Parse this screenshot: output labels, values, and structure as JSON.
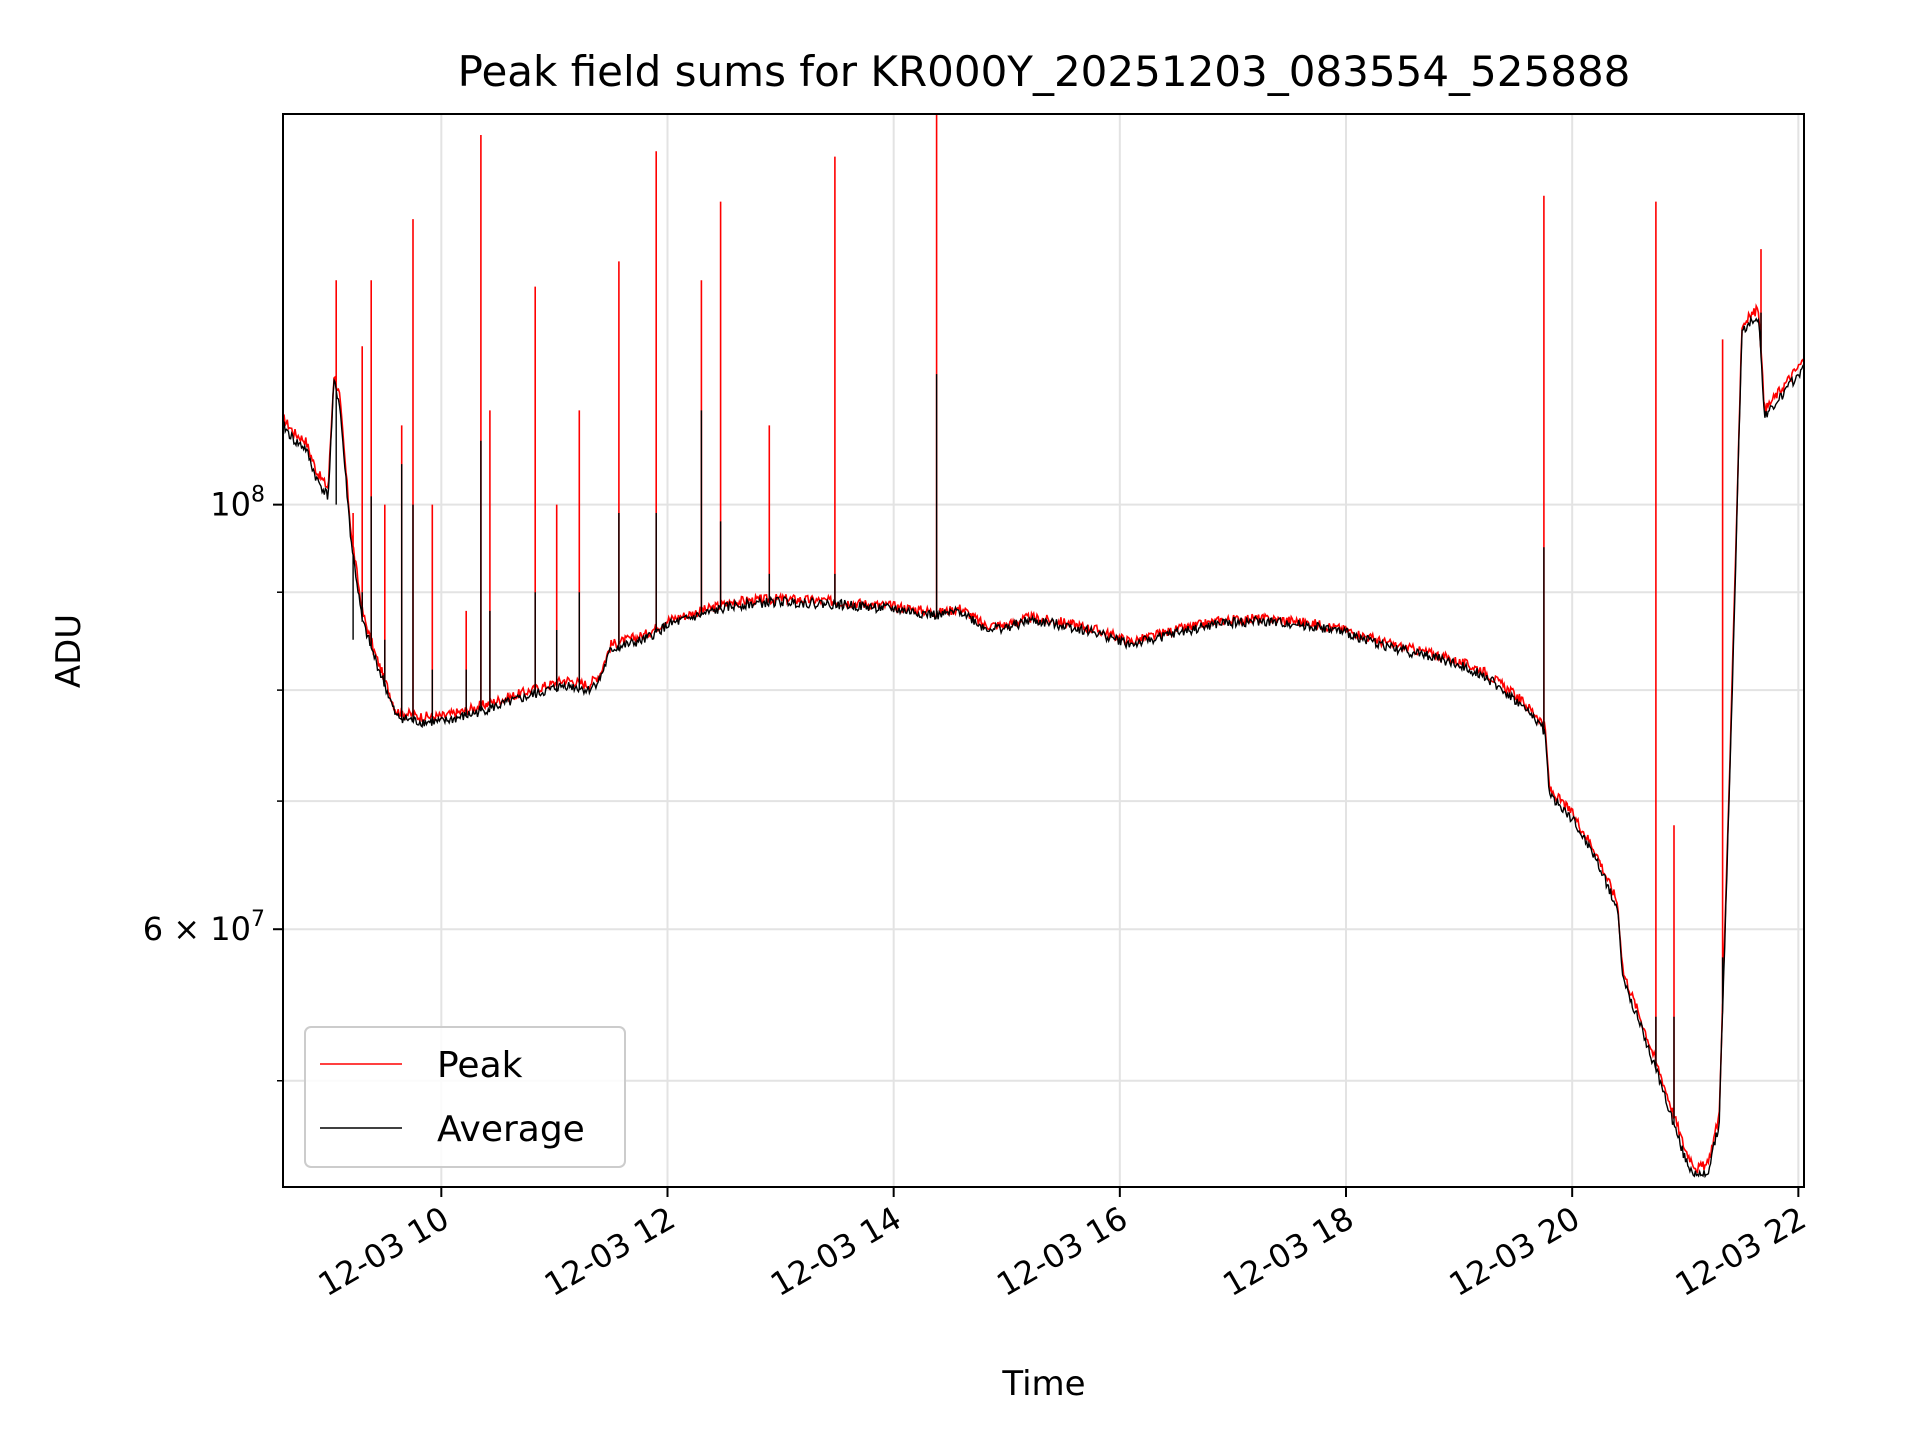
{
  "chart_data": {
    "type": "line",
    "title": "Peak field sums for KR000Y_20251203_083554_525888",
    "xlabel": "Time",
    "ylabel": "ADU",
    "yscale": "log",
    "grid": true,
    "legend_position": "lower-left",
    "xlim": [
      8.6,
      22.05
    ],
    "ylim": [
      44000000,
      160000000
    ],
    "x_ticks": [
      {
        "value": 10,
        "label": "12-03 10"
      },
      {
        "value": 12,
        "label": "12-03 12"
      },
      {
        "value": 14,
        "label": "12-03 14"
      },
      {
        "value": 16,
        "label": "12-03 16"
      },
      {
        "value": 18,
        "label": "12-03 18"
      },
      {
        "value": 20,
        "label": "12-03 20"
      },
      {
        "value": 22,
        "label": "12-03 22"
      }
    ],
    "y_ticks": [
      {
        "value": 100000000,
        "label_base": "10",
        "label_exp": "8"
      },
      {
        "value": 60000000,
        "label_base": "6 × 10",
        "label_exp": "7"
      }
    ],
    "y_minor_ticks": [
      50000000,
      70000000,
      80000000,
      90000000
    ],
    "series": [
      {
        "name": "Peak",
        "color": "#ff0000",
        "baseline": [
          [
            8.6,
            111000000
          ],
          [
            8.7,
            109000000
          ],
          [
            8.8,
            108000000
          ],
          [
            8.9,
            104000000
          ],
          [
            9.0,
            102000000
          ],
          [
            9.05,
            117000000
          ],
          [
            9.1,
            114000000
          ],
          [
            9.2,
            97000000
          ],
          [
            9.3,
            88000000
          ],
          [
            9.4,
            84000000
          ],
          [
            9.5,
            81000000
          ],
          [
            9.6,
            78000000
          ],
          [
            9.8,
            77500000
          ],
          [
            10.0,
            77500000
          ],
          [
            10.2,
            78000000
          ],
          [
            10.5,
            79000000
          ],
          [
            10.8,
            80000000
          ],
          [
            11.1,
            81000000
          ],
          [
            11.3,
            80500000
          ],
          [
            11.4,
            81500000
          ],
          [
            11.5,
            84500000
          ],
          [
            11.8,
            85500000
          ],
          [
            12.0,
            87000000
          ],
          [
            12.3,
            88000000
          ],
          [
            12.6,
            89000000
          ],
          [
            13.0,
            89300000
          ],
          [
            13.5,
            89000000
          ],
          [
            14.0,
            88500000
          ],
          [
            14.4,
            87800000
          ],
          [
            14.6,
            88300000
          ],
          [
            14.8,
            86500000
          ],
          [
            15.0,
            86500000
          ],
          [
            15.2,
            87300000
          ],
          [
            15.5,
            86800000
          ],
          [
            15.8,
            86000000
          ],
          [
            16.1,
            84800000
          ],
          [
            16.5,
            86000000
          ],
          [
            16.9,
            87000000
          ],
          [
            17.2,
            87200000
          ],
          [
            17.5,
            87000000
          ],
          [
            17.8,
            86500000
          ],
          [
            18.0,
            86000000
          ],
          [
            18.4,
            84500000
          ],
          [
            18.8,
            83500000
          ],
          [
            19.2,
            82000000
          ],
          [
            19.5,
            79500000
          ],
          [
            19.7,
            77500000
          ],
          [
            19.76,
            76500000
          ],
          [
            19.8,
            71000000
          ],
          [
            20.0,
            69000000
          ],
          [
            20.2,
            66000000
          ],
          [
            20.4,
            62000000
          ],
          [
            20.45,
            57000000
          ],
          [
            20.6,
            54000000
          ],
          [
            20.8,
            50000000
          ],
          [
            21.0,
            46000000
          ],
          [
            21.1,
            45000000
          ],
          [
            21.2,
            45200000
          ],
          [
            21.3,
            48000000
          ],
          [
            21.4,
            75000000
          ],
          [
            21.5,
            124000000
          ],
          [
            21.6,
            126000000
          ],
          [
            21.65,
            126500000
          ],
          [
            21.7,
            112000000
          ],
          [
            21.8,
            114000000
          ],
          [
            21.9,
            116000000
          ],
          [
            22.0,
            118000000
          ],
          [
            22.05,
            119000000
          ]
        ]
      },
      {
        "name": "Average",
        "color": "#000000",
        "baseline": [
          [
            8.6,
            110000000
          ],
          [
            8.7,
            108000000
          ],
          [
            8.8,
            107000000
          ],
          [
            8.9,
            103000000
          ],
          [
            9.0,
            101000000
          ],
          [
            9.05,
            116000000
          ],
          [
            9.1,
            113000000
          ],
          [
            9.2,
            96000000
          ],
          [
            9.3,
            87000000
          ],
          [
            9.4,
            83500000
          ],
          [
            9.5,
            80500000
          ],
          [
            9.6,
            77500000
          ],
          [
            9.8,
            77000000
          ],
          [
            10.0,
            77000000
          ],
          [
            10.2,
            77500000
          ],
          [
            10.5,
            78500000
          ],
          [
            10.8,
            79500000
          ],
          [
            11.1,
            80500000
          ],
          [
            11.3,
            80000000
          ],
          [
            11.4,
            81000000
          ],
          [
            11.5,
            84000000
          ],
          [
            11.8,
            85000000
          ],
          [
            12.0,
            86500000
          ],
          [
            12.3,
            87600000
          ],
          [
            12.6,
            88600000
          ],
          [
            13.0,
            89000000
          ],
          [
            13.5,
            88700000
          ],
          [
            14.0,
            88200000
          ],
          [
            14.4,
            87500000
          ],
          [
            14.6,
            88000000
          ],
          [
            14.8,
            86200000
          ],
          [
            15.0,
            86200000
          ],
          [
            15.2,
            87000000
          ],
          [
            15.5,
            86500000
          ],
          [
            15.8,
            85700000
          ],
          [
            16.1,
            84500000
          ],
          [
            16.5,
            85700000
          ],
          [
            16.9,
            86700000
          ],
          [
            17.2,
            86900000
          ],
          [
            17.5,
            86700000
          ],
          [
            17.8,
            86200000
          ],
          [
            18.0,
            85700000
          ],
          [
            18.4,
            84200000
          ],
          [
            18.8,
            83200000
          ],
          [
            19.2,
            81600000
          ],
          [
            19.5,
            79000000
          ],
          [
            19.7,
            77000000
          ],
          [
            19.76,
            76000000
          ],
          [
            19.8,
            70500000
          ],
          [
            20.0,
            68500000
          ],
          [
            20.2,
            65500000
          ],
          [
            20.4,
            61500000
          ],
          [
            20.45,
            56500000
          ],
          [
            20.6,
            53500000
          ],
          [
            20.8,
            49500000
          ],
          [
            21.0,
            45500000
          ],
          [
            21.1,
            44500000
          ],
          [
            21.2,
            44800000
          ],
          [
            21.3,
            47500000
          ],
          [
            21.4,
            74000000
          ],
          [
            21.5,
            123000000
          ],
          [
            21.6,
            125000000
          ],
          [
            21.65,
            125500000
          ],
          [
            21.7,
            111000000
          ],
          [
            21.8,
            113000000
          ],
          [
            21.9,
            115000000
          ],
          [
            22.0,
            117000000
          ],
          [
            22.05,
            118000000
          ]
        ]
      }
    ],
    "spikes": [
      {
        "x": 9.07,
        "peak": 131000000,
        "avg": 100000000
      },
      {
        "x": 9.22,
        "peak": 99000000,
        "avg": 85000000
      },
      {
        "x": 9.3,
        "peak": 121000000,
        "avg": 90000000
      },
      {
        "x": 9.38,
        "peak": 131000000,
        "avg": 101000000
      },
      {
        "x": 9.5,
        "peak": 100000000,
        "avg": 85000000
      },
      {
        "x": 9.65,
        "peak": 110000000,
        "avg": 105000000
      },
      {
        "x": 9.75,
        "peak": 141000000,
        "avg": 100000000
      },
      {
        "x": 9.92,
        "peak": 100000000,
        "avg": 82000000
      },
      {
        "x": 10.22,
        "peak": 88000000,
        "avg": 82000000
      },
      {
        "x": 10.35,
        "peak": 156000000,
        "avg": 108000000
      },
      {
        "x": 10.43,
        "peak": 112000000,
        "avg": 88000000
      },
      {
        "x": 10.83,
        "peak": 130000000,
        "avg": 90000000
      },
      {
        "x": 11.02,
        "peak": 100000000,
        "avg": 86000000
      },
      {
        "x": 11.22,
        "peak": 112000000,
        "avg": 90000000
      },
      {
        "x": 11.57,
        "peak": 134000000,
        "avg": 99000000
      },
      {
        "x": 11.9,
        "peak": 153000000,
        "avg": 99000000
      },
      {
        "x": 12.3,
        "peak": 131000000,
        "avg": 112000000
      },
      {
        "x": 12.47,
        "peak": 144000000,
        "avg": 98000000
      },
      {
        "x": 12.9,
        "peak": 110000000,
        "avg": 92000000
      },
      {
        "x": 13.48,
        "peak": 152000000,
        "avg": 92000000
      },
      {
        "x": 14.38,
        "peak": 160000000,
        "avg": 117000000
      },
      {
        "x": 19.75,
        "peak": 145000000,
        "avg": 95000000
      },
      {
        "x": 20.74,
        "peak": 144000000,
        "avg": 54000000
      },
      {
        "x": 20.9,
        "peak": 68000000,
        "avg": 54000000
      },
      {
        "x": 21.33,
        "peak": 122000000,
        "avg": 58000000
      },
      {
        "x": 21.67,
        "peak": 136000000,
        "avg": 126000000
      }
    ]
  }
}
